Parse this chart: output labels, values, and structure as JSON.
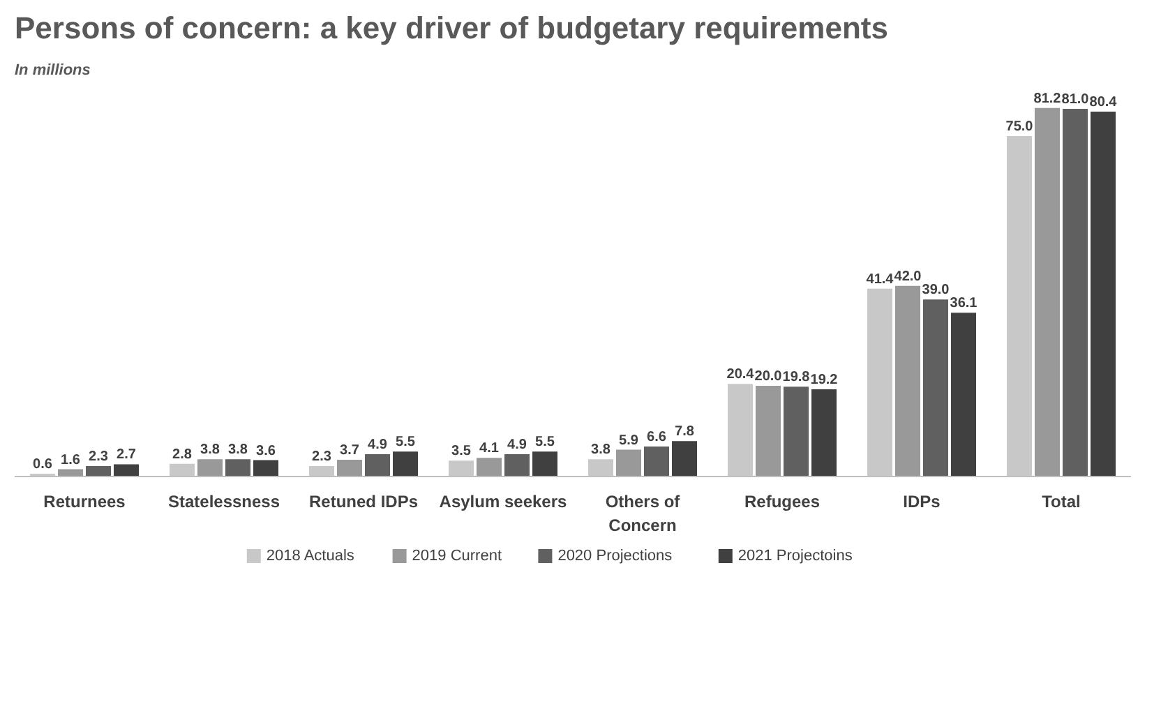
{
  "chart_data": {
    "type": "bar",
    "title": "Persons of concern: a key driver of budgetary requirements",
    "subtitle": "In millions",
    "categories": [
      "Returnees",
      "Statelessness",
      "Retuned IDPs",
      "Asylum seekers",
      "Others of\nConcern",
      "Refugees",
      "IDPs",
      "Total"
    ],
    "series": [
      {
        "name": "2018 Actuals",
        "color": "#c8c8c8",
        "values": [
          0.6,
          2.8,
          2.3,
          3.5,
          3.8,
          20.4,
          41.4,
          75.0
        ],
        "value_labels": [
          "0.6",
          "2.8",
          "2.3",
          "3.5",
          "3.8",
          "20.4",
          "41.4",
          "75.0"
        ]
      },
      {
        "name": "2019 Current",
        "color": "#999999",
        "values": [
          1.6,
          3.8,
          3.7,
          4.1,
          5.9,
          20.0,
          42.0,
          81.2
        ],
        "value_labels": [
          "1.6",
          "3.8",
          "3.7",
          "4.1",
          "5.9",
          "20.0",
          "42.0",
          "81.2"
        ]
      },
      {
        "name": "2020 Projections",
        "color": "#606060",
        "values": [
          2.3,
          3.8,
          4.9,
          4.9,
          6.6,
          19.8,
          39.0,
          81.0
        ],
        "value_labels": [
          "2.3",
          "3.8",
          "4.9",
          "4.9",
          "6.6",
          "19.8",
          "39.0",
          "81.0"
        ]
      },
      {
        "name": "2021 Projectoins",
        "color": "#404040",
        "values": [
          2.7,
          3.6,
          5.5,
          5.5,
          7.8,
          19.2,
          36.1,
          80.4
        ],
        "value_labels": [
          "2.7",
          "3.6",
          "5.5",
          "5.5",
          "7.8",
          "19.2",
          "36.1",
          "80.4"
        ]
      }
    ],
    "legend": "bottom"
  }
}
